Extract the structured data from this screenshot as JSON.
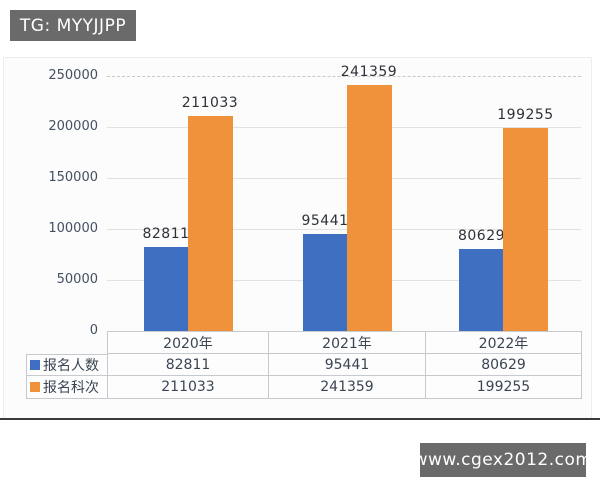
{
  "watermarks": {
    "tg": "TG: MYYJJPP",
    "site": "www.cgex2012.com"
  },
  "colors": {
    "series1": "#3f6fc1",
    "series2": "#f0913c",
    "badge_bg": "#6a6a6a",
    "grid": "#e2e2e2",
    "axis_text": "#445061",
    "table_border": "#c6cacf"
  },
  "chart_data": {
    "type": "bar",
    "categories": [
      "2020年",
      "2021年",
      "2022年"
    ],
    "series": [
      {
        "name": "报名人数",
        "color": "#3f6fc1",
        "values": [
          82811,
          95441,
          80629
        ]
      },
      {
        "name": "报名科次",
        "color": "#f0913c",
        "values": [
          211033,
          241359,
          199255
        ]
      }
    ],
    "title": "",
    "xlabel": "",
    "ylabel": "",
    "ylim": [
      0,
      250000
    ],
    "yticks": [
      0,
      50000,
      100000,
      150000,
      200000,
      250000
    ],
    "grid": true,
    "data_labels": true,
    "legend_position": "table-left",
    "data_table": true
  }
}
